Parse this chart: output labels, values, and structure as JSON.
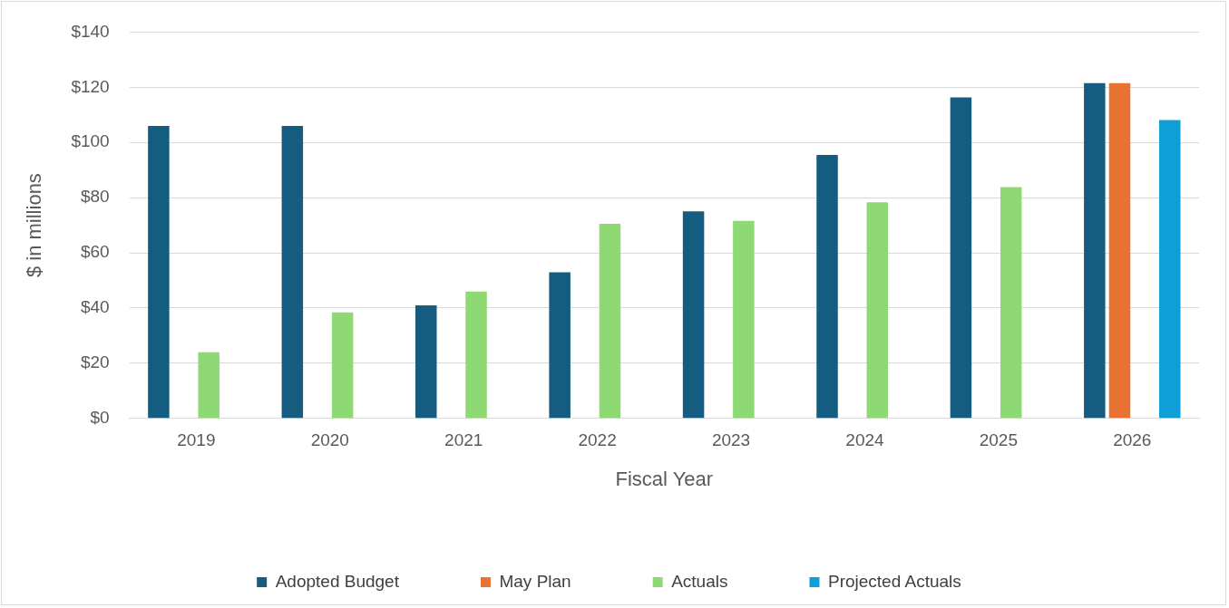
{
  "chart_data": {
    "type": "bar",
    "xlabel": "Fiscal Year",
    "ylabel": "$ in millions",
    "categories": [
      "2019",
      "2020",
      "2021",
      "2022",
      "2023",
      "2024",
      "2025",
      "2026"
    ],
    "series": [
      {
        "name": "Adopted Budget",
        "color": "#145c80",
        "values": [
          106,
          106,
          41,
          53,
          75,
          95.5,
          116.3,
          121.5
        ]
      },
      {
        "name": "May Plan",
        "color": "#e97132",
        "values": [
          null,
          null,
          null,
          null,
          null,
          null,
          null,
          121.5
        ]
      },
      {
        "name": "Actuals",
        "color": "#8ed973",
        "values": [
          24,
          38.4,
          46,
          70.5,
          71.6,
          78.3,
          83.8,
          null
        ]
      },
      {
        "name": "Projected Actuals",
        "color": "#0f9ed5",
        "values": [
          null,
          null,
          null,
          null,
          null,
          null,
          null,
          108.1
        ]
      }
    ],
    "ylim": [
      0,
      140
    ],
    "yticks": [
      {
        "value": 0,
        "label": "$0"
      },
      {
        "value": 20,
        "label": "$20"
      },
      {
        "value": 40,
        "label": "$40"
      },
      {
        "value": 60,
        "label": "$60"
      },
      {
        "value": 80,
        "label": "$80"
      },
      {
        "value": 100,
        "label": "$100"
      },
      {
        "value": 120,
        "label": "$120"
      },
      {
        "value": 140,
        "label": "$140"
      }
    ],
    "grid": "y",
    "legend": "bottom"
  }
}
